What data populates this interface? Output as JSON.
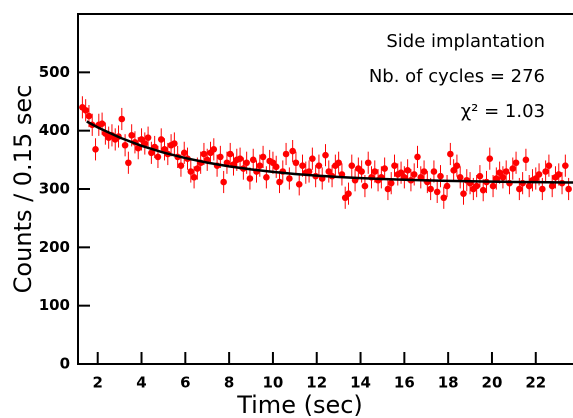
{
  "chart_data": {
    "type": "scatter",
    "xlabel": "Time (sec)",
    "ylabel": "Counts / 0.15 sec",
    "annotations": [
      "Side implantation",
      "Nb. of cycles = 276",
      "χ² = 1.03"
    ],
    "xlim": [
      1.1,
      23.7
    ],
    "ylim": [
      0,
      600
    ],
    "xticks": [
      2,
      4,
      6,
      8,
      10,
      12,
      14,
      16,
      18,
      20,
      22
    ],
    "yticks": [
      0,
      100,
      200,
      300,
      400,
      500
    ],
    "color": "#ff0000",
    "error": 19,
    "x": [
      1.3,
      1.45,
      1.6,
      1.75,
      1.9,
      2.05,
      2.2,
      2.35,
      2.5,
      2.65,
      2.8,
      2.95,
      3.1,
      3.25,
      3.4,
      3.55,
      3.7,
      3.85,
      4,
      4.15,
      4.3,
      4.45,
      4.6,
      4.75,
      4.9,
      5.05,
      5.2,
      5.35,
      5.5,
      5.65,
      5.8,
      5.95,
      6.1,
      6.25,
      6.4,
      6.55,
      6.7,
      6.85,
      7,
      7.15,
      7.3,
      7.45,
      7.6,
      7.75,
      7.9,
      8.05,
      8.2,
      8.35,
      8.5,
      8.65,
      8.8,
      8.95,
      9.1,
      9.25,
      9.4,
      9.55,
      9.7,
      9.85,
      10,
      10.15,
      10.3,
      10.45,
      10.6,
      10.75,
      10.9,
      11.05,
      11.2,
      11.35,
      11.5,
      11.65,
      11.8,
      11.95,
      12.1,
      12.25,
      12.4,
      12.55,
      12.7,
      12.85,
      13,
      13.15,
      13.3,
      13.45,
      13.6,
      13.75,
      13.9,
      14.05,
      14.2,
      14.35,
      14.5,
      14.65,
      14.8,
      14.95,
      15.1,
      15.25,
      15.4,
      15.55,
      15.7,
      15.85,
      16,
      16.15,
      16.3,
      16.45,
      16.6,
      16.75,
      16.9,
      17.05,
      17.2,
      17.35,
      17.5,
      17.65,
      17.8,
      17.95,
      18.1,
      18.25,
      18.4,
      18.55,
      18.7,
      18.85,
      19,
      19.15,
      19.3,
      19.45,
      19.6,
      19.75,
      19.9,
      20.05,
      20.2,
      20.35,
      20.5,
      20.65,
      20.8,
      20.95,
      21.1,
      21.25,
      21.4,
      21.55,
      21.7,
      21.85,
      22,
      22.15,
      22.3,
      22.45,
      22.6,
      22.75,
      22.9,
      23.05,
      23.2,
      23.35,
      23.5
    ],
    "values": [
      440,
      435,
      425,
      410,
      368,
      410,
      412,
      395,
      388,
      392,
      385,
      390,
      420,
      375,
      345,
      392,
      380,
      370,
      385,
      378,
      388,
      362,
      372,
      355,
      385,
      368,
      360,
      375,
      378,
      355,
      340,
      362,
      352,
      330,
      320,
      335,
      345,
      360,
      350,
      362,
      368,
      340,
      355,
      312,
      345,
      360,
      342,
      350,
      352,
      335,
      345,
      318,
      350,
      330,
      340,
      355,
      320,
      348,
      345,
      338,
      312,
      330,
      360,
      318,
      365,
      345,
      308,
      340,
      328,
      330,
      352,
      322,
      340,
      318,
      358,
      330,
      322,
      340,
      345,
      325,
      285,
      292,
      340,
      315,
      335,
      330,
      305,
      345,
      320,
      330,
      315,
      320,
      335,
      300,
      310,
      340,
      325,
      328,
      320,
      332,
      315,
      325,
      355,
      320,
      330,
      312,
      300,
      330,
      295,
      322,
      285,
      305,
      360,
      332,
      340,
      320,
      292,
      315,
      310,
      300,
      305,
      322,
      298,
      312,
      352,
      305,
      318,
      328,
      320,
      330,
      310,
      335,
      345,
      300,
      310,
      350,
      305,
      315,
      318,
      325,
      300,
      330,
      340,
      305,
      320,
      325,
      310,
      340,
      300
    ],
    "fit": {
      "color": "#000000",
      "x": [
        1.5,
        2,
        3,
        4,
        5,
        6,
        7,
        8,
        9,
        10,
        11,
        12,
        13,
        14,
        15,
        16,
        17,
        18,
        19,
        20,
        21,
        22,
        23,
        23.7
      ],
      "values": [
        415.7,
        405.6,
        388.3,
        374.1,
        362.5,
        353,
        345.2,
        338.8,
        333.6,
        329.3,
        325.8,
        322.9,
        320.6,
        318.7,
        317.1,
        315.8,
        314.8,
        313.9,
        313.2,
        312.6,
        312.1,
        311.8,
        311.4,
        311.2
      ]
    }
  }
}
